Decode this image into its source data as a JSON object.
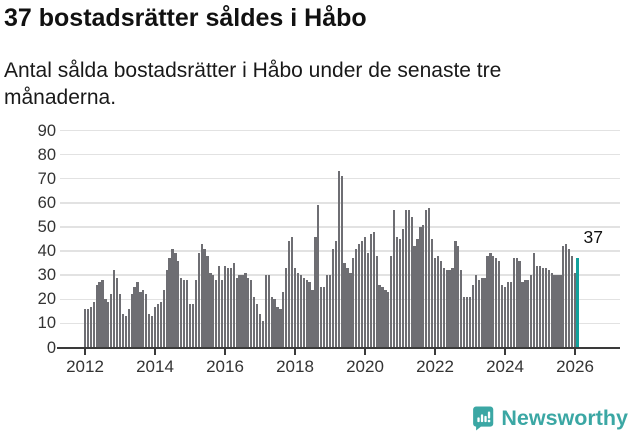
{
  "header": {
    "title": "37 bostadsrätter såldes i Håbo",
    "subtitle_lines": [
      "Antal sålda bostadsrätter i Håbo under de senaste tre",
      "månaderna."
    ]
  },
  "annotation": "37",
  "footer": {
    "brand": "Newsworthy",
    "logo_icon": "bar-chart-speech-bubble-icon"
  },
  "colors": {
    "bar": "#6e6e73",
    "highlight": "#12a19c",
    "grid": "#e2e2e2",
    "axis": "#3a3a3a",
    "tick_text": "#333333",
    "brand": "#3ba7a4",
    "background": "#ffffff"
  },
  "chart_data": {
    "type": "bar",
    "title": "37 bostadsrätter såldes i Håbo",
    "subtitle": "Antal sålda bostadsrätter i Håbo under de senaste tre månaderna.",
    "x_start": "2012-01",
    "x_end": "2026-02",
    "x_frequency": "monthly",
    "x_tick_labels": [
      "2012",
      "2014",
      "2016",
      "2018",
      "2020",
      "2022",
      "2024",
      "2026"
    ],
    "y_ticks": [
      0,
      10,
      20,
      30,
      40,
      50,
      60,
      70,
      80,
      90
    ],
    "ylim": [
      0,
      90
    ],
    "grid": "horizontal",
    "legend": "none",
    "series": [
      {
        "name": "Antal sålda bostadsrätter",
        "values": [
          16,
          16,
          17,
          19,
          26,
          27,
          28,
          20,
          19,
          22,
          32,
          29,
          22,
          14,
          13,
          16,
          22,
          25,
          27,
          23,
          24,
          22,
          14,
          13,
          17,
          18,
          19,
          24,
          32,
          37,
          41,
          39,
          36,
          29,
          28,
          28,
          18,
          18,
          28,
          39,
          43,
          41,
          38,
          31,
          30,
          28,
          34,
          28,
          34,
          33,
          33,
          35,
          29,
          30,
          30,
          31,
          29,
          28,
          21,
          18,
          14,
          11,
          30,
          30,
          21,
          20,
          17,
          16,
          23,
          33,
          44,
          46,
          33,
          31,
          30,
          29,
          28,
          27,
          24,
          46,
          59,
          25,
          25,
          30,
          30,
          41,
          44,
          73,
          71,
          35,
          33,
          31,
          37,
          41,
          43,
          44,
          46,
          39,
          47,
          48,
          38,
          26,
          25,
          24,
          23,
          38,
          57,
          46,
          45,
          49,
          57,
          57,
          54,
          42,
          45,
          50,
          51,
          57,
          58,
          45,
          37,
          38,
          36,
          33,
          32,
          32,
          33,
          44,
          42,
          32,
          21,
          21,
          21,
          26,
          30,
          28,
          29,
          29,
          38,
          39,
          38,
          37,
          36,
          26,
          25,
          27,
          27,
          37,
          37,
          36,
          27,
          28,
          28,
          30,
          39,
          34,
          34,
          33,
          33,
          32,
          31,
          30,
          30,
          30,
          42,
          43,
          41,
          38,
          31,
          37
        ]
      }
    ],
    "highlight": {
      "position": "last",
      "value": 37,
      "label": "37"
    }
  }
}
